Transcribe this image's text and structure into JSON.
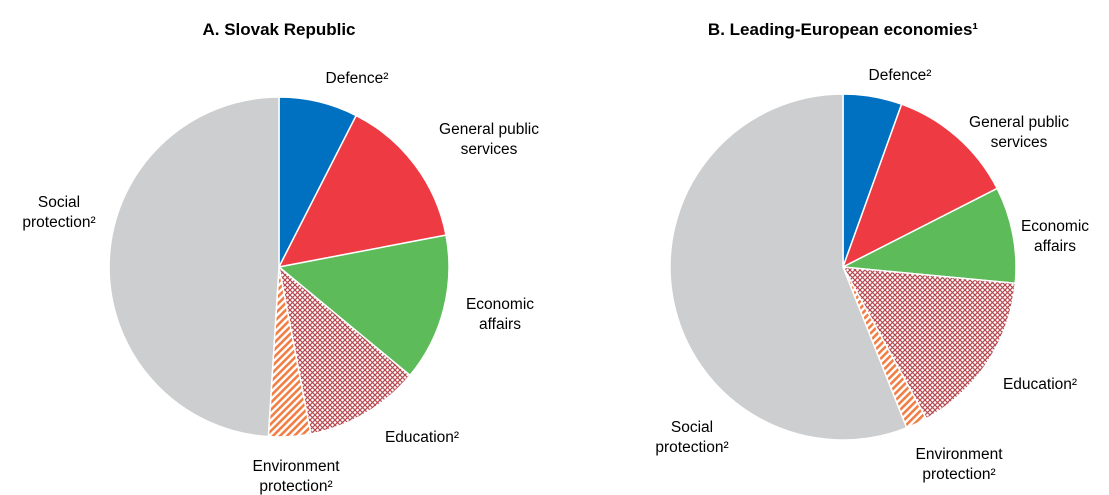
{
  "chart_data": [
    {
      "type": "pie",
      "title": "A. Slovak Republic",
      "slices": [
        {
          "label_lines": [
            "Defence²"
          ],
          "value": 7.5,
          "color": "#0070c0",
          "fill": "solid"
        },
        {
          "label_lines": [
            "General public",
            "services"
          ],
          "value": 14.5,
          "color": "#ee3a43",
          "fill": "solid"
        },
        {
          "label_lines": [
            "Economic",
            "affairs"
          ],
          "value": 14.0,
          "color": "#5dbb5a",
          "fill": "solid"
        },
        {
          "label_lines": [
            "Education²"
          ],
          "value": 11.0,
          "color": "#b5484f",
          "fill": "crosshatch"
        },
        {
          "label_lines": [
            "Environment",
            "protection²"
          ],
          "value": 4.0,
          "color": "#f07e45",
          "fill": "diagonal"
        },
        {
          "label_lines": [
            "Social",
            "protection²"
          ],
          "value": 49.0,
          "color": "#cdcecf",
          "fill": "solid"
        }
      ]
    },
    {
      "type": "pie",
      "title": "B. Leading-European economies¹",
      "slices": [
        {
          "label_lines": [
            "Defence²"
          ],
          "value": 5.5,
          "color": "#0070c0",
          "fill": "solid"
        },
        {
          "label_lines": [
            "General public",
            "services"
          ],
          "value": 12.0,
          "color": "#ee3a43",
          "fill": "solid"
        },
        {
          "label_lines": [
            "Economic",
            "affairs"
          ],
          "value": 9.0,
          "color": "#5dbb5a",
          "fill": "solid"
        },
        {
          "label_lines": [
            "Education²"
          ],
          "value": 15.5,
          "color": "#b5484f",
          "fill": "crosshatch"
        },
        {
          "label_lines": [
            "Environment",
            "protection²"
          ],
          "value": 2.0,
          "color": "#f07e45",
          "fill": "diagonal"
        },
        {
          "label_lines": [
            "Social",
            "protection²"
          ],
          "value": 56.0,
          "color": "#cdcecf",
          "fill": "solid"
        }
      ]
    }
  ]
}
